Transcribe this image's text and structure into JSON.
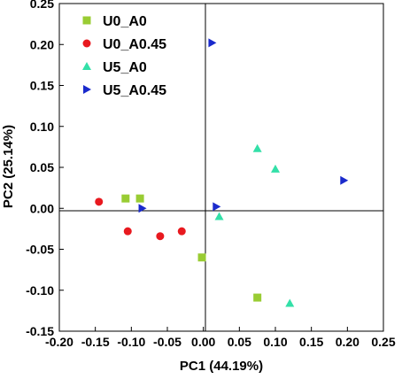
{
  "chart_data": {
    "type": "scatter",
    "xlabel": "PC1 (44.19%)",
    "ylabel": "PC2 (25.14%)",
    "xlim": [
      -0.2,
      0.25
    ],
    "ylim": [
      -0.15,
      0.25
    ],
    "x_ticks": [
      "-0.20",
      "-0.15",
      "-0.10",
      "-0.05",
      "0.00",
      "0.05",
      "0.10",
      "0.15",
      "0.20",
      "0.25"
    ],
    "y_ticks": [
      "-0.15",
      "-0.10",
      "-0.05",
      "0.00",
      "0.05",
      "0.10",
      "0.15",
      "0.20",
      "0.25"
    ],
    "reference_lines": {
      "x": 0,
      "y": 0
    },
    "grid": false,
    "legend_position": "top-left",
    "series": [
      {
        "name": "U0_A0",
        "marker": "square",
        "color": "#99CC33",
        "points": [
          [
            -0.108,
            0.012
          ],
          [
            -0.088,
            0.012
          ],
          [
            -0.002,
            -0.06
          ],
          [
            0.075,
            -0.109
          ]
        ]
      },
      {
        "name": "U0_A0.45",
        "marker": "circle",
        "color": "#E8191F",
        "points": [
          [
            -0.145,
            0.008
          ],
          [
            -0.105,
            -0.028
          ],
          [
            -0.06,
            -0.034
          ],
          [
            -0.03,
            -0.028
          ]
        ]
      },
      {
        "name": "U5_A0",
        "marker": "triangle-up",
        "color": "#33E0A8",
        "points": [
          [
            0.075,
            0.073
          ],
          [
            0.1,
            0.048
          ],
          [
            0.022,
            -0.01
          ],
          [
            0.12,
            -0.116
          ]
        ]
      },
      {
        "name": "U5_A0.45",
        "marker": "triangle-right",
        "color": "#1A2ACC",
        "points": [
          [
            0.012,
            0.202
          ],
          [
            -0.085,
            0.0
          ],
          [
            0.018,
            0.002
          ],
          [
            0.195,
            0.034
          ]
        ]
      }
    ]
  }
}
